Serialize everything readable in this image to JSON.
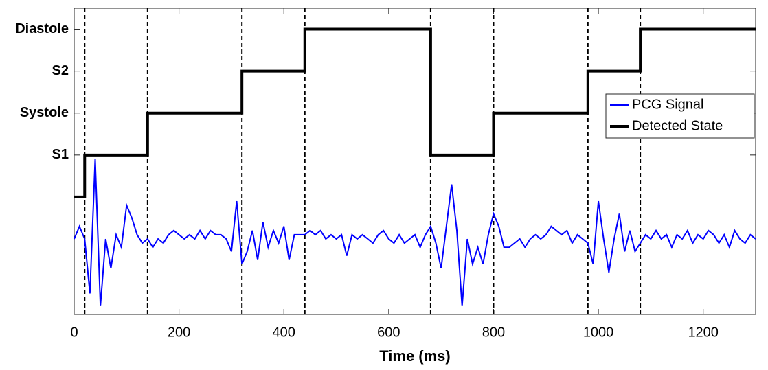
{
  "chart_data": {
    "type": "line",
    "xlabel": "Time (ms)",
    "xlim": [
      0,
      1300
    ],
    "xticks": [
      0,
      200,
      400,
      600,
      800,
      1000,
      1200
    ],
    "ylim": [
      -2.8,
      4.5
    ],
    "yticks": [
      {
        "value": 1,
        "label": "S1"
      },
      {
        "value": 2,
        "label": "Systole"
      },
      {
        "value": 3,
        "label": "S2"
      },
      {
        "value": 4,
        "label": "Diastole"
      }
    ],
    "boundaries": [
      20,
      140,
      320,
      440,
      680,
      800,
      980,
      1080
    ],
    "legend": "right",
    "series": [
      {
        "name": "PCG Signal",
        "color": "#0000ff",
        "x": [
          0,
          10,
          20,
          30,
          40,
          50,
          60,
          70,
          80,
          90,
          100,
          110,
          120,
          130,
          140,
          150,
          160,
          170,
          180,
          190,
          200,
          210,
          220,
          230,
          240,
          250,
          260,
          270,
          280,
          290,
          300,
          310,
          320,
          330,
          340,
          350,
          360,
          370,
          380,
          390,
          400,
          410,
          420,
          430,
          440,
          450,
          460,
          470,
          480,
          490,
          500,
          510,
          520,
          530,
          540,
          550,
          560,
          570,
          580,
          590,
          600,
          610,
          620,
          630,
          640,
          650,
          660,
          670,
          680,
          690,
          700,
          710,
          720,
          730,
          740,
          750,
          760,
          770,
          780,
          790,
          800,
          810,
          820,
          830,
          840,
          850,
          860,
          870,
          880,
          890,
          900,
          910,
          920,
          930,
          940,
          950,
          960,
          970,
          980,
          990,
          1000,
          1010,
          1020,
          1030,
          1040,
          1050,
          1060,
          1070,
          1080,
          1090,
          1100,
          1110,
          1120,
          1130,
          1140,
          1150,
          1160,
          1170,
          1180,
          1190,
          1200,
          1210,
          1220,
          1230,
          1240,
          1250,
          1260,
          1270,
          1280,
          1290,
          1300
        ],
        "values": [
          -1.0,
          -0.7,
          -1.0,
          -2.3,
          0.9,
          -2.6,
          -1.0,
          -1.7,
          -0.9,
          -1.2,
          -0.2,
          -0.5,
          -0.9,
          -1.1,
          -1.0,
          -1.2,
          -1.0,
          -1.1,
          -0.9,
          -0.8,
          -0.9,
          -1.0,
          -0.9,
          -1.0,
          -0.8,
          -1.0,
          -0.8,
          -0.9,
          -0.9,
          -1.0,
          -1.3,
          -0.1,
          -1.6,
          -1.3,
          -0.8,
          -1.5,
          -0.6,
          -1.2,
          -0.8,
          -1.1,
          -0.7,
          -1.5,
          -0.9,
          -0.9,
          -0.9,
          -0.8,
          -0.9,
          -0.8,
          -1.0,
          -0.9,
          -1.0,
          -0.9,
          -1.4,
          -0.9,
          -1.0,
          -0.9,
          -1.0,
          -1.1,
          -0.9,
          -0.8,
          -1.0,
          -1.1,
          -0.9,
          -1.1,
          -1.0,
          -0.9,
          -1.2,
          -0.9,
          -0.7,
          -1.1,
          -1.7,
          -0.7,
          0.3,
          -0.8,
          -2.6,
          -1.0,
          -1.6,
          -1.2,
          -1.6,
          -0.9,
          -0.4,
          -0.7,
          -1.2,
          -1.2,
          -1.1,
          -1.0,
          -1.2,
          -1.0,
          -0.9,
          -1.0,
          -0.9,
          -0.7,
          -0.8,
          -0.9,
          -0.8,
          -1.1,
          -0.9,
          -1.0,
          -1.1,
          -1.6,
          -0.1,
          -1.0,
          -1.8,
          -1.0,
          -0.4,
          -1.3,
          -0.8,
          -1.3,
          -1.1,
          -0.9,
          -1.0,
          -0.8,
          -1.0,
          -0.9,
          -1.2,
          -0.9,
          -1.0,
          -0.8,
          -1.1,
          -0.9,
          -1.0,
          -0.8,
          -0.9,
          -1.1,
          -0.9,
          -1.2,
          -0.8,
          -1.0,
          -1.1,
          -0.9,
          -1.0
        ]
      },
      {
        "name": "Detected State",
        "color": "#000000",
        "x": [
          0,
          20,
          20,
          140,
          140,
          320,
          320,
          440,
          440,
          680,
          680,
          800,
          800,
          980,
          980,
          1080,
          1080,
          1300
        ],
        "values": [
          0,
          0,
          1,
          1,
          2,
          2,
          3,
          3,
          4,
          4,
          1,
          1,
          2,
          2,
          3,
          3,
          4,
          4
        ]
      }
    ]
  }
}
